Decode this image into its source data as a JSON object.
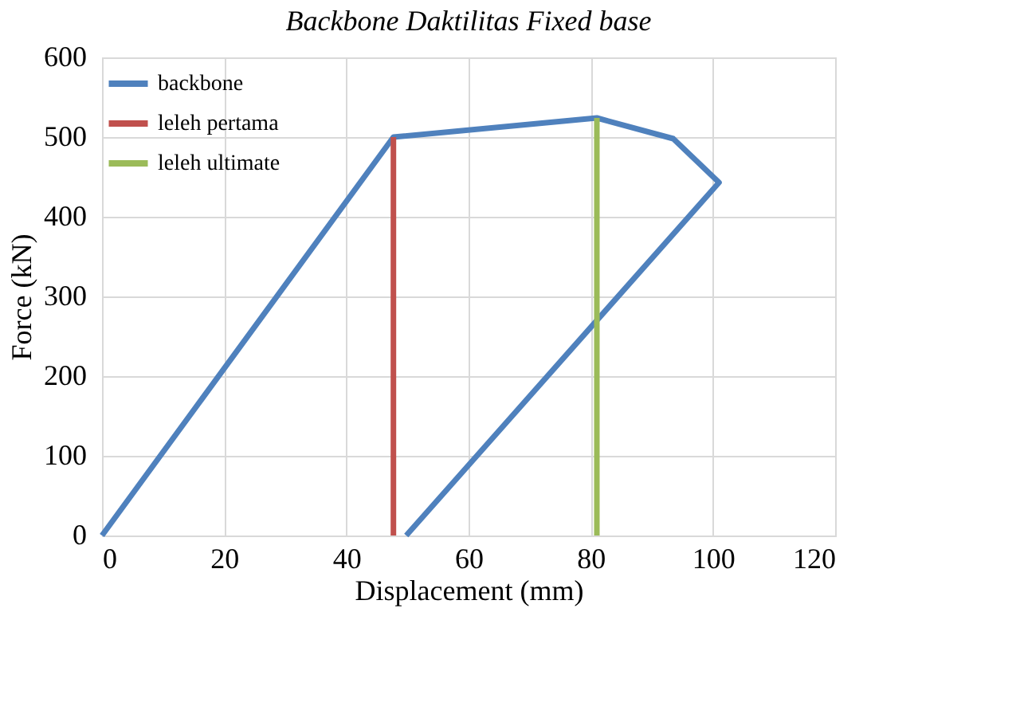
{
  "chart_data": {
    "type": "line",
    "title": "Backbone Daktilitas Fixed base",
    "xlabel": "Displacement (mm)",
    "ylabel": "Force (kN)",
    "series": [
      {
        "name": "backbone",
        "color": "#4f81bd",
        "x": [
          0,
          47.7,
          81,
          93.5,
          101,
          49.8
        ],
        "values": [
          0,
          500,
          524,
          498,
          443,
          0
        ]
      },
      {
        "name": "leleh pertama",
        "color": "#c0504d",
        "x": [
          47.7,
          47.7
        ],
        "values": [
          0,
          500
        ]
      },
      {
        "name": "leleh ultimate",
        "color": "#9bbb59",
        "x": [
          81,
          81
        ],
        "values": [
          0,
          524
        ]
      }
    ],
    "xlim": [
      0,
      120
    ],
    "xticks": [
      0,
      20,
      40,
      60,
      80,
      100,
      120
    ],
    "ylim": [
      0,
      600
    ],
    "yticks": [
      0,
      100,
      200,
      300,
      400,
      500,
      600
    ],
    "grid": true,
    "legend": "top left",
    "marker": "none",
    "line_style": "solid"
  }
}
